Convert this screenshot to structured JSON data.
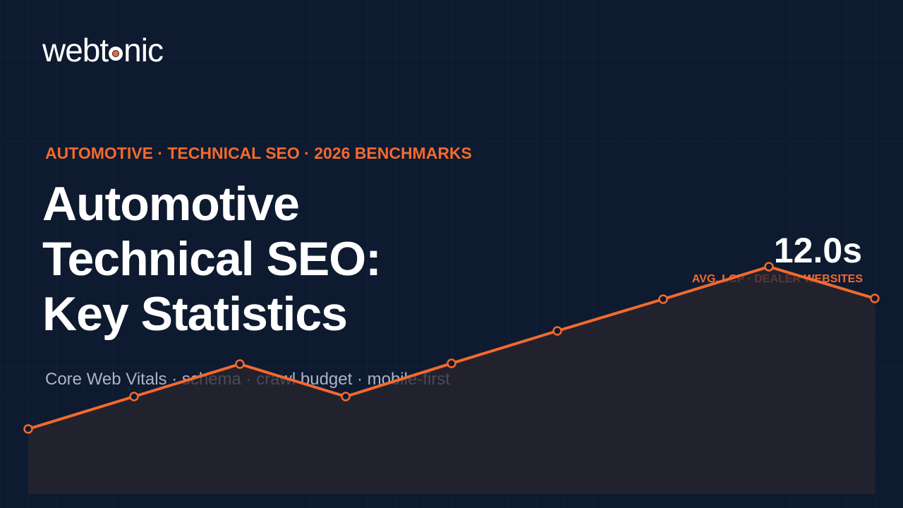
{
  "logo": {
    "prefix": "webt",
    "suffix": "nic"
  },
  "eyebrow": "AUTOMOTIVE · TECHNICAL SEO · 2026 BENCHMARKS",
  "title": [
    "Automotive",
    "Technical SEO:",
    "Key Statistics"
  ],
  "subtitle": "Core Web Vitals · schema · crawl budget · mobile-first",
  "stat": {
    "value": "12.0s",
    "label": "AVG. LCP · DEALER WEBSITES"
  }
}
